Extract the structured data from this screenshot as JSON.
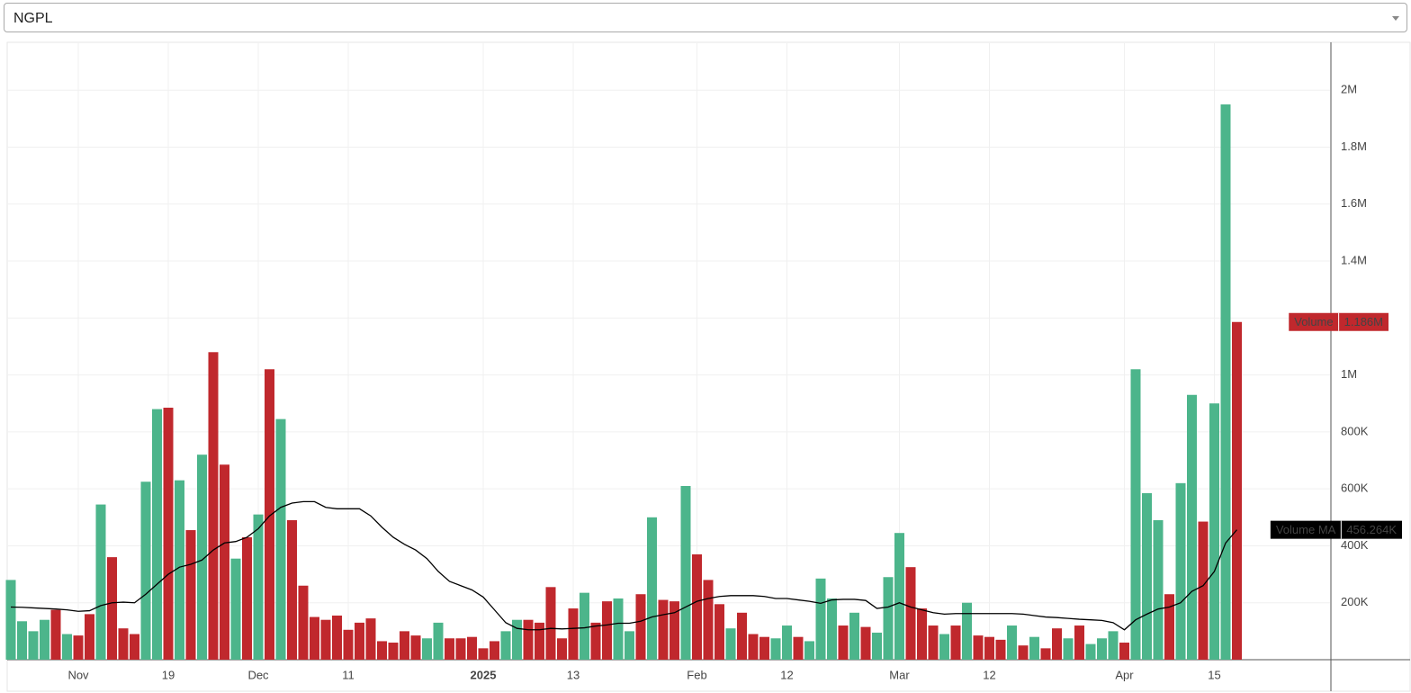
{
  "symbol": "NGPL",
  "chart_data": {
    "type": "bar",
    "categories": [
      null,
      null,
      null,
      null,
      null,
      null,
      "Nov",
      null,
      null,
      null,
      null,
      null,
      null,
      null,
      "19",
      null,
      null,
      null,
      null,
      null,
      null,
      null,
      "Dec",
      null,
      null,
      null,
      null,
      null,
      null,
      null,
      "11",
      null,
      null,
      null,
      null,
      null,
      null,
      null,
      null,
      null,
      null,
      null,
      "2025",
      null,
      null,
      null,
      null,
      null,
      null,
      null,
      "13",
      null,
      null,
      null,
      null,
      null,
      null,
      null,
      null,
      null,
      null,
      "Feb",
      null,
      null,
      null,
      null,
      null,
      null,
      null,
      "12",
      null,
      null,
      null,
      null,
      null,
      null,
      null,
      null,
      null,
      "Mar",
      null,
      null,
      null,
      null,
      null,
      null,
      null,
      "12",
      null,
      null,
      null,
      null,
      null,
      null,
      null,
      null,
      null,
      null,
      null,
      "Apr",
      null,
      null,
      null,
      null,
      null,
      null,
      null,
      "15",
      null,
      null
    ],
    "series": [
      {
        "name": "Volume",
        "type": "bar",
        "last_value_label": "1.186M",
        "tag_color": "#c0282d",
        "values": [
          280000,
          135000,
          100000,
          140000,
          175000,
          90000,
          85000,
          160000,
          545000,
          360000,
          110000,
          90000,
          625000,
          880000,
          885000,
          630000,
          455000,
          720000,
          1080000,
          685000,
          355000,
          430000,
          510000,
          1020000,
          845000,
          490000,
          260000,
          150000,
          140000,
          155000,
          105000,
          130000,
          145000,
          65000,
          60000,
          100000,
          85000,
          75000,
          130000,
          75000,
          75000,
          80000,
          40000,
          65000,
          100000,
          140000,
          140000,
          130000,
          255000,
          75000,
          180000,
          235000,
          130000,
          205000,
          215000,
          100000,
          230000,
          500000,
          210000,
          205000,
          610000,
          370000,
          280000,
          195000,
          110000,
          165000,
          90000,
          80000,
          75000,
          120000,
          80000,
          65000,
          285000,
          215000,
          120000,
          165000,
          115000,
          95000,
          290000,
          445000,
          325000,
          180000,
          120000,
          90000,
          120000,
          200000,
          85000,
          80000,
          70000,
          120000,
          50000,
          80000,
          40000,
          110000,
          75000,
          120000,
          55000,
          75000,
          100000,
          60000,
          1020000,
          585000,
          490000,
          230000,
          620000,
          930000,
          485000,
          900000,
          1950000,
          1186000
        ],
        "colors": [
          "#4cb58b",
          "#4cb58b",
          "#4cb58b",
          "#4cb58b",
          "#c0282d",
          "#4cb58b",
          "#c0282d",
          "#c0282d",
          "#4cb58b",
          "#c0282d",
          "#c0282d",
          "#c0282d",
          "#4cb58b",
          "#4cb58b",
          "#c0282d",
          "#4cb58b",
          "#c0282d",
          "#4cb58b",
          "#c0282d",
          "#c0282d",
          "#4cb58b",
          "#c0282d",
          "#4cb58b",
          "#c0282d",
          "#4cb58b",
          "#c0282d",
          "#c0282d",
          "#c0282d",
          "#c0282d",
          "#c0282d",
          "#c0282d",
          "#c0282d",
          "#c0282d",
          "#c0282d",
          "#c0282d",
          "#c0282d",
          "#c0282d",
          "#4cb58b",
          "#4cb58b",
          "#c0282d",
          "#c0282d",
          "#c0282d",
          "#c0282d",
          "#c0282d",
          "#4cb58b",
          "#4cb58b",
          "#c0282d",
          "#c0282d",
          "#c0282d",
          "#c0282d",
          "#c0282d",
          "#4cb58b",
          "#c0282d",
          "#c0282d",
          "#4cb58b",
          "#4cb58b",
          "#c0282d",
          "#4cb58b",
          "#c0282d",
          "#c0282d",
          "#4cb58b",
          "#c0282d",
          "#c0282d",
          "#c0282d",
          "#4cb58b",
          "#c0282d",
          "#c0282d",
          "#c0282d",
          "#4cb58b",
          "#4cb58b",
          "#c0282d",
          "#4cb58b",
          "#4cb58b",
          "#4cb58b",
          "#c0282d",
          "#4cb58b",
          "#c0282d",
          "#4cb58b",
          "#4cb58b",
          "#4cb58b",
          "#c0282d",
          "#c0282d",
          "#c0282d",
          "#4cb58b",
          "#c0282d",
          "#4cb58b",
          "#c0282d",
          "#c0282d",
          "#c0282d",
          "#4cb58b",
          "#c0282d",
          "#4cb58b",
          "#c0282d",
          "#c0282d",
          "#4cb58b",
          "#c0282d",
          "#4cb58b",
          "#4cb58b",
          "#4cb58b",
          "#c0282d",
          "#4cb58b",
          "#4cb58b",
          "#4cb58b",
          "#c0282d",
          "#4cb58b",
          "#4cb58b",
          "#c0282d",
          "#4cb58b",
          "#4cb58b",
          "#c0282d"
        ]
      },
      {
        "name": "Volume MA",
        "type": "line",
        "color": "#000000",
        "last_value_label": "456.264K",
        "tag_color": "#000000",
        "values": [
          185000,
          184000,
          182000,
          180000,
          178000,
          175000,
          170000,
          172000,
          190000,
          200000,
          202000,
          200000,
          230000,
          265000,
          300000,
          325000,
          335000,
          350000,
          385000,
          410000,
          415000,
          430000,
          460000,
          505000,
          535000,
          550000,
          555000,
          555000,
          535000,
          530000,
          530000,
          530000,
          505000,
          465000,
          430000,
          405000,
          385000,
          355000,
          310000,
          275000,
          260000,
          245000,
          220000,
          175000,
          130000,
          110000,
          105000,
          105000,
          110000,
          108000,
          110000,
          112000,
          118000,
          122000,
          128000,
          128000,
          135000,
          150000,
          158000,
          165000,
          185000,
          205000,
          215000,
          222000,
          225000,
          225000,
          225000,
          222000,
          215000,
          215000,
          210000,
          205000,
          198000,
          210000,
          212000,
          212000,
          208000,
          180000,
          185000,
          200000,
          185000,
          175000,
          165000,
          160000,
          162000,
          162000,
          162000,
          162000,
          162000,
          162000,
          160000,
          155000,
          150000,
          148000,
          145000,
          142000,
          140000,
          138000,
          130000,
          105000,
          140000,
          160000,
          178000,
          185000,
          200000,
          240000,
          260000,
          310000,
          410000,
          456264
        ]
      }
    ],
    "ylim": [
      0,
      2165000
    ],
    "yticks": [
      {
        "value": 200000,
        "label": "200K"
      },
      {
        "value": 400000,
        "label": "400K"
      },
      {
        "value": 600000,
        "label": "600K"
      },
      {
        "value": 800000,
        "label": "800K"
      },
      {
        "value": 1000000,
        "label": "1M"
      },
      {
        "value": 1200000,
        "label": "1.2M"
      },
      {
        "value": 1400000,
        "label": "1.4M"
      },
      {
        "value": 1600000,
        "label": "1.6M"
      },
      {
        "value": 1800000,
        "label": "1.8M"
      },
      {
        "value": 2000000,
        "label": "2M"
      }
    ],
    "grid": true
  }
}
